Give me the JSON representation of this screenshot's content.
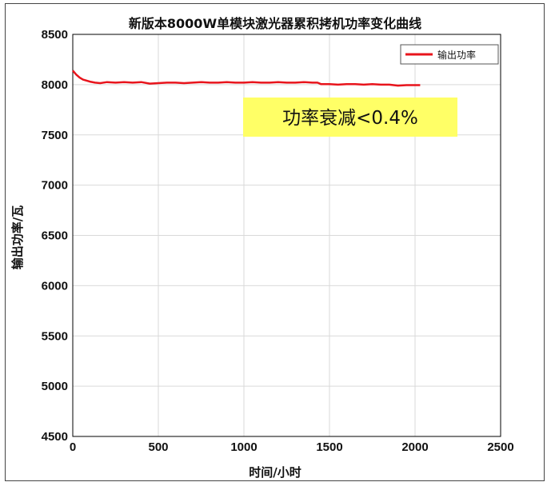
{
  "chart_data": {
    "type": "line",
    "title": "新版本8000W单模块激光器累积拷机功率变化曲线",
    "xlabel": "时间/小时",
    "ylabel": "输出功率/瓦",
    "xlim": [
      0,
      2500
    ],
    "ylim": [
      4500,
      8500
    ],
    "xticks": [
      0,
      500,
      1000,
      1500,
      2000,
      2500
    ],
    "yticks": [
      4500,
      5000,
      5500,
      6000,
      6500,
      7000,
      7500,
      8000,
      8500
    ],
    "grid": true,
    "legend_position": "top-right",
    "annotation": "功率衰减<0.4%",
    "colors": {
      "series": "#e8141c",
      "annotation_bg": "#ffff66",
      "grid": "#d9d9d9",
      "axis": "#000000"
    },
    "series": [
      {
        "name": "输出功率",
        "x": [
          0,
          20,
          40,
          60,
          80,
          100,
          130,
          160,
          200,
          250,
          300,
          350,
          400,
          450,
          500,
          550,
          600,
          650,
          700,
          750,
          800,
          850,
          900,
          950,
          1000,
          1050,
          1100,
          1150,
          1200,
          1250,
          1300,
          1350,
          1400,
          1430,
          1450,
          1500,
          1550,
          1600,
          1650,
          1700,
          1750,
          1800,
          1850,
          1900,
          1950,
          2000,
          2030
        ],
        "values": [
          8140,
          8100,
          8070,
          8050,
          8040,
          8030,
          8020,
          8015,
          8025,
          8020,
          8025,
          8020,
          8025,
          8010,
          8015,
          8020,
          8020,
          8015,
          8020,
          8025,
          8020,
          8020,
          8025,
          8020,
          8020,
          8025,
          8020,
          8020,
          8025,
          8020,
          8020,
          8025,
          8020,
          8020,
          8005,
          8005,
          8000,
          8005,
          8005,
          8000,
          8005,
          8000,
          8000,
          7990,
          7995,
          7995,
          7995
        ]
      }
    ]
  }
}
